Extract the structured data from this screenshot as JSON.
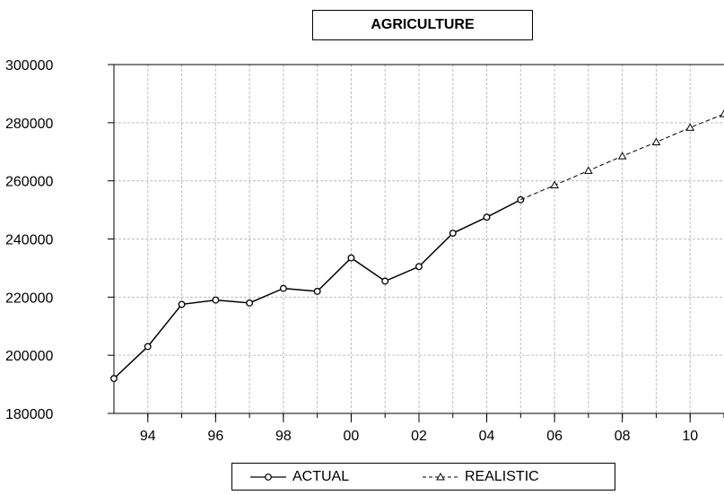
{
  "chart_data": {
    "type": "line",
    "title": "AGRICULTURE",
    "x_range": [
      1993,
      2011
    ],
    "ylim": [
      180000,
      300000
    ],
    "yticks": [
      180000,
      200000,
      220000,
      240000,
      260000,
      280000,
      300000
    ],
    "ytick_labels": [
      "180000",
      "200000",
      "220000",
      "240000",
      "260000",
      "280000",
      "300000"
    ],
    "xticks": [
      1994,
      1996,
      1998,
      2000,
      2002,
      2004,
      2006,
      2008,
      2010
    ],
    "xtick_labels": [
      "94",
      "96",
      "98",
      "00",
      "02",
      "04",
      "06",
      "08",
      "10"
    ],
    "grid": true,
    "legend_position": "bottom",
    "series": [
      {
        "name": "ACTUAL",
        "style": "solid",
        "marker": "circle",
        "color": "#000000",
        "x": [
          1993,
          1994,
          1995,
          1996,
          1997,
          1998,
          1999,
          2000,
          2001,
          2002,
          2003,
          2004,
          2005
        ],
        "values": [
          192000,
          203000,
          217500,
          219000,
          218000,
          223000,
          222000,
          233500,
          225500,
          230500,
          242000,
          247500,
          253500
        ]
      },
      {
        "name": "REALISTIC",
        "style": "dashed",
        "marker": "triangle",
        "color": "#000000",
        "x": [
          2005,
          2006,
          2007,
          2008,
          2009,
          2010,
          2011
        ],
        "values": [
          253500,
          258500,
          263500,
          268500,
          273300,
          278300,
          283000
        ]
      }
    ]
  }
}
